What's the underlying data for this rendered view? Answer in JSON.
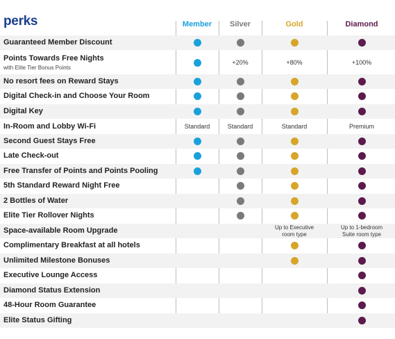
{
  "title": "perks",
  "tiers": [
    {
      "label": "Member",
      "color": "#1aa1dc"
    },
    {
      "label": "Silver",
      "color": "#7a7a7a"
    },
    {
      "label": "Gold",
      "color": "#d6a52a"
    },
    {
      "label": "Diamond",
      "color": "#5c1a4d"
    }
  ],
  "rows": [
    {
      "label": "Guaranteed Member Discount",
      "cells": [
        {
          "dot": true
        },
        {
          "dot": true
        },
        {
          "dot": true
        },
        {
          "dot": true
        }
      ]
    },
    {
      "label": "Points Towards Free Nights",
      "sublabel": "with Elite Tier Bonus Points",
      "cells": [
        {
          "dot": true
        },
        {
          "text": "+20%"
        },
        {
          "text": "+80%"
        },
        {
          "text": "+100%"
        }
      ]
    },
    {
      "label": "No resort fees on Reward Stays",
      "cells": [
        {
          "dot": true
        },
        {
          "dot": true
        },
        {
          "dot": true
        },
        {
          "dot": true
        }
      ]
    },
    {
      "label": "Digital Check-in and Choose Your Room",
      "cells": [
        {
          "dot": true
        },
        {
          "dot": true
        },
        {
          "dot": true
        },
        {
          "dot": true
        }
      ]
    },
    {
      "label": "Digital Key",
      "cells": [
        {
          "dot": true
        },
        {
          "dot": true
        },
        {
          "dot": true
        },
        {
          "dot": true
        }
      ]
    },
    {
      "label": "In-Room and Lobby Wi-Fi",
      "cells": [
        {
          "text": "Standard"
        },
        {
          "text": "Standard"
        },
        {
          "text": "Standard"
        },
        {
          "text": "Premium"
        }
      ]
    },
    {
      "label": "Second Guest Stays Free",
      "cells": [
        {
          "dot": true
        },
        {
          "dot": true
        },
        {
          "dot": true
        },
        {
          "dot": true
        }
      ]
    },
    {
      "label": "Late Check-out",
      "cells": [
        {
          "dot": true
        },
        {
          "dot": true
        },
        {
          "dot": true
        },
        {
          "dot": true
        }
      ]
    },
    {
      "label": "Free Transfer of Points and Points Pooling",
      "cells": [
        {
          "dot": true
        },
        {
          "dot": true
        },
        {
          "dot": true
        },
        {
          "dot": true
        }
      ]
    },
    {
      "label": "5th Standard Reward Night Free",
      "cells": [
        {},
        {
          "dot": true
        },
        {
          "dot": true
        },
        {
          "dot": true
        }
      ]
    },
    {
      "label": "2 Bottles of Water",
      "cells": [
        {},
        {
          "dot": true
        },
        {
          "dot": true
        },
        {
          "dot": true
        }
      ]
    },
    {
      "label": "Elite Tier Rollover Nights",
      "cells": [
        {},
        {
          "dot": true
        },
        {
          "dot": true
        },
        {
          "dot": true
        }
      ]
    },
    {
      "label": "Space-available Room Upgrade",
      "cells": [
        {},
        {},
        {
          "text": "Up to Executive",
          "text2": "room type"
        },
        {
          "text": "Up to 1-bedroom",
          "text2": "Suite room type"
        }
      ]
    },
    {
      "label": "Complimentary Breakfast at all hotels",
      "cells": [
        {},
        {},
        {
          "dot": true
        },
        {
          "dot": true
        }
      ]
    },
    {
      "label": "Unlimited Milestone Bonuses",
      "cells": [
        {},
        {},
        {
          "dot": true
        },
        {
          "dot": true
        }
      ]
    },
    {
      "label": "Executive Lounge Access",
      "cells": [
        {},
        {},
        {},
        {
          "dot": true
        }
      ]
    },
    {
      "label": "Diamond Status Extension",
      "cells": [
        {},
        {},
        {},
        {
          "dot": true
        }
      ]
    },
    {
      "label": "48-Hour Room Guarantee",
      "cells": [
        {},
        {},
        {},
        {
          "dot": true
        }
      ]
    },
    {
      "label": "Elite Status Gifting",
      "cells": [
        {},
        {},
        {},
        {
          "dot": true
        }
      ]
    }
  ]
}
